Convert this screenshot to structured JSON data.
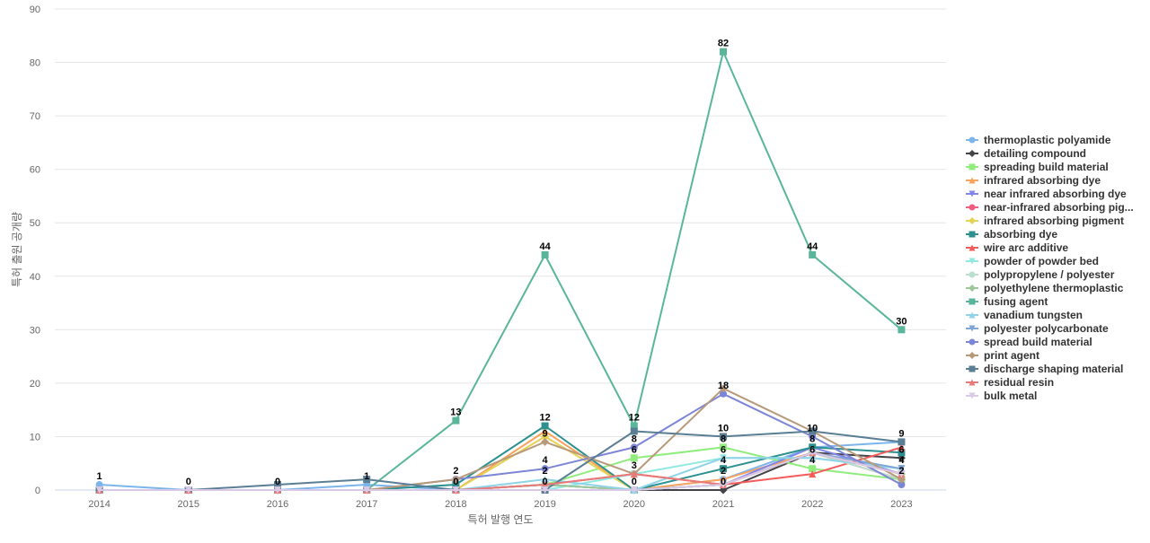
{
  "chart_data": {
    "type": "line",
    "title": "",
    "xlabel": "특허 발행 연도",
    "ylabel": "특허 출원 공개량",
    "ylim": [
      0,
      90
    ],
    "yticks": [
      0,
      10,
      20,
      30,
      40,
      50,
      60,
      70,
      80,
      90
    ],
    "x": [
      "2014",
      "2015",
      "2016",
      "2017",
      "2018",
      "2019",
      "2020",
      "2021",
      "2022",
      "2023"
    ],
    "grid": true,
    "legend_position": "right",
    "series": [
      {
        "name": "thermoplastic polyamide",
        "color": "#7cb5ec",
        "marker": "circle",
        "values": [
          1,
          0,
          0,
          1,
          0,
          0,
          0,
          2,
          8,
          9
        ]
      },
      {
        "name": "detailing compound",
        "color": "#434348",
        "marker": "diamond",
        "values": [
          0,
          0,
          0,
          0,
          0,
          1,
          0,
          0,
          7,
          6
        ]
      },
      {
        "name": "spreading build material",
        "color": "#90ed7d",
        "marker": "square",
        "values": [
          0,
          0,
          0,
          0,
          0,
          1,
          6,
          8,
          4,
          2
        ]
      },
      {
        "name": "infrared absorbing dye",
        "color": "#f7a35c",
        "marker": "triangle",
        "values": [
          0,
          0,
          0,
          0,
          0,
          11,
          0,
          2,
          7,
          3
        ]
      },
      {
        "name": "near infrared absorbing dye",
        "color": "#8085e9",
        "marker": "triangle-down",
        "values": [
          0,
          0,
          0,
          0,
          0,
          1,
          0,
          1,
          8,
          3
        ]
      },
      {
        "name": "near-infrared absorbing pig...",
        "color": "#f15c80",
        "marker": "circle",
        "values": [
          0,
          0,
          0,
          0,
          0,
          0,
          0,
          1,
          7,
          2
        ]
      },
      {
        "name": "infrared absorbing pigment",
        "color": "#e4d354",
        "marker": "diamond",
        "values": [
          0,
          0,
          0,
          0,
          0,
          10,
          0,
          1,
          7,
          3
        ]
      },
      {
        "name": "absorbing dye",
        "color": "#2b908f",
        "marker": "square",
        "values": [
          0,
          0,
          0,
          0,
          1,
          12,
          0,
          4,
          8,
          7
        ]
      },
      {
        "name": "wire arc additive",
        "color": "#f45b5b",
        "marker": "triangle",
        "values": [
          0,
          0,
          0,
          0,
          0,
          1,
          3,
          1,
          3,
          8
        ]
      },
      {
        "name": "powder of powder bed",
        "color": "#91e8e1",
        "marker": "triangle-down",
        "values": [
          0,
          0,
          0,
          0,
          0,
          0,
          3,
          6,
          6,
          4
        ]
      },
      {
        "name": "polypropylene / polyester",
        "color": "#b8e0cc",
        "marker": "circle",
        "values": [
          0,
          0,
          0,
          0,
          0,
          1,
          0,
          1,
          7,
          2
        ]
      },
      {
        "name": "polyethylene thermoplastic",
        "color": "#9fc89a",
        "marker": "diamond",
        "values": [
          0,
          0,
          0,
          0,
          0,
          1,
          0,
          1,
          7,
          3
        ]
      },
      {
        "name": "fusing agent",
        "color": "#59b69a",
        "marker": "square",
        "values": [
          0,
          0,
          0,
          0,
          13,
          44,
          12,
          82,
          44,
          30
        ]
      },
      {
        "name": "vanadium tungsten",
        "color": "#8fd3e8",
        "marker": "triangle",
        "values": [
          0,
          0,
          0,
          0,
          0,
          2,
          0,
          6,
          6,
          4
        ]
      },
      {
        "name": "polyester polycarbonate",
        "color": "#7fa6d6",
        "marker": "triangle-down",
        "values": [
          0,
          0,
          0,
          0,
          0,
          0,
          0,
          1,
          7,
          4
        ]
      },
      {
        "name": "spread build material",
        "color": "#7d85d6",
        "marker": "circle",
        "values": [
          0,
          0,
          0,
          0,
          2,
          4,
          8,
          18,
          10,
          1
        ]
      },
      {
        "name": "print agent",
        "color": "#b89a7a",
        "marker": "diamond",
        "values": [
          0,
          0,
          0,
          0,
          2,
          9,
          3,
          19,
          11,
          2
        ]
      },
      {
        "name": "discharge shaping material",
        "color": "#5a7e93",
        "marker": "square",
        "values": [
          0,
          0,
          1,
          2,
          0,
          0,
          11,
          10,
          11,
          9
        ]
      },
      {
        "name": "residual resin",
        "color": "#e87a7a",
        "marker": "triangle",
        "values": [
          0,
          0,
          0,
          0,
          0,
          1,
          3,
          1,
          7,
          3
        ]
      },
      {
        "name": "bulk metal",
        "color": "#d9c8e6",
        "marker": "triangle-down",
        "values": [
          0,
          0,
          0,
          0,
          0,
          0,
          0,
          1,
          7,
          3
        ]
      }
    ],
    "data_labels": [
      {
        "x": "2014",
        "y": 1,
        "text": "1"
      },
      {
        "x": "2015",
        "y": 0,
        "text": "0"
      },
      {
        "x": "2016",
        "y": 0,
        "text": "0"
      },
      {
        "x": "2017",
        "y": 1,
        "text": "1"
      },
      {
        "x": "2018",
        "y": 13,
        "text": "13"
      },
      {
        "x": "2018",
        "y": 2,
        "text": "2"
      },
      {
        "x": "2018",
        "y": 0,
        "text": "0"
      },
      {
        "x": "2019",
        "y": 44,
        "text": "44"
      },
      {
        "x": "2019",
        "y": 12,
        "text": "12"
      },
      {
        "x": "2019",
        "y": 9,
        "text": "9"
      },
      {
        "x": "2019",
        "y": 4,
        "text": "4"
      },
      {
        "x": "2019",
        "y": 2,
        "text": "2"
      },
      {
        "x": "2019",
        "y": 0,
        "text": "0"
      },
      {
        "x": "2020",
        "y": 12,
        "text": "12"
      },
      {
        "x": "2020",
        "y": 8,
        "text": "8"
      },
      {
        "x": "2020",
        "y": 6,
        "text": "6"
      },
      {
        "x": "2020",
        "y": 3,
        "text": "3"
      },
      {
        "x": "2020",
        "y": 0,
        "text": "0"
      },
      {
        "x": "2021",
        "y": 82,
        "text": "82"
      },
      {
        "x": "2021",
        "y": 18,
        "text": "18"
      },
      {
        "x": "2021",
        "y": 10,
        "text": "10"
      },
      {
        "x": "2021",
        "y": 8,
        "text": "8"
      },
      {
        "x": "2021",
        "y": 6,
        "text": "6"
      },
      {
        "x": "2021",
        "y": 4,
        "text": "4"
      },
      {
        "x": "2021",
        "y": 2,
        "text": "2"
      },
      {
        "x": "2021",
        "y": 0,
        "text": "0"
      },
      {
        "x": "2022",
        "y": 44,
        "text": "44"
      },
      {
        "x": "2022",
        "y": 10,
        "text": "10"
      },
      {
        "x": "2022",
        "y": 8,
        "text": "8"
      },
      {
        "x": "2022",
        "y": 6,
        "text": "6"
      },
      {
        "x": "2022",
        "y": 4,
        "text": "4"
      },
      {
        "x": "2023",
        "y": 30,
        "text": "30"
      },
      {
        "x": "2023",
        "y": 9,
        "text": "9"
      },
      {
        "x": "2023",
        "y": 6,
        "text": "6"
      },
      {
        "x": "2023",
        "y": 4,
        "text": "4"
      },
      {
        "x": "2023",
        "y": 2,
        "text": "2"
      }
    ]
  }
}
